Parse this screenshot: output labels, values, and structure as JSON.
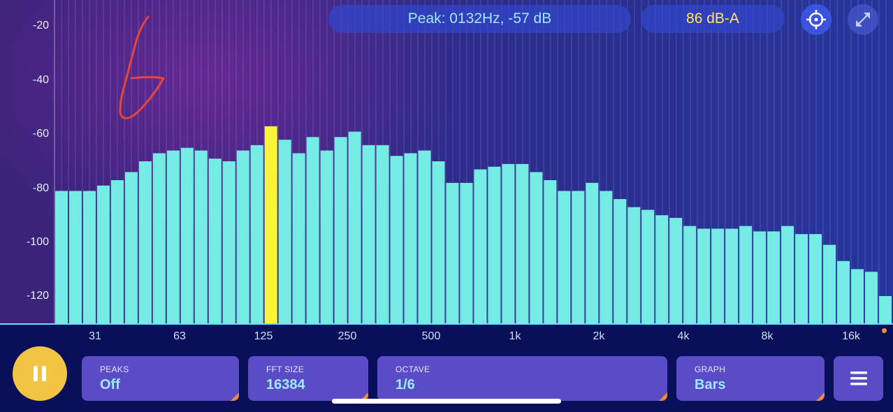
{
  "header": {
    "peak_text": "Peak: 0132Hz, -57 dB",
    "level_text": "86 dB-A",
    "target_icon": "crosshair-icon",
    "expand_icon": "expand-icon"
  },
  "chart_data": {
    "type": "bar",
    "ylim": [
      -131,
      -15
    ],
    "yticks": [
      "-20",
      "-40",
      "-60",
      "-80",
      "-100",
      "-120"
    ],
    "xticks": [
      "31",
      "63",
      "125",
      "250",
      "500",
      "1k",
      "2k",
      "4k",
      "8k",
      "16k"
    ],
    "bar_values": [
      -81,
      -81,
      -81,
      -79,
      -77,
      -74,
      -70,
      -67,
      -66,
      -65,
      -66,
      -69,
      -70,
      -66,
      -64,
      -57,
      -62,
      -67,
      -61,
      -66,
      -61,
      -59,
      -64,
      -64,
      -68,
      -67,
      -66,
      -70,
      -78,
      -78,
      -73,
      -72,
      -71,
      -71,
      -74,
      -77,
      -81,
      -81,
      -78,
      -81,
      -84,
      -87,
      -88,
      -90,
      -91,
      -94,
      -95,
      -95,
      -95,
      -94,
      -96,
      -96,
      -94,
      -97,
      -97,
      -101,
      -107,
      -110,
      -111,
      -120
    ],
    "highlight_index": 15,
    "bar_color": "#74ece4",
    "highlight_color": "#f8f53a"
  },
  "controls": {
    "pause_icon": "pause-icon",
    "peaks": {
      "title": "PEAKS",
      "value": "Off"
    },
    "fft": {
      "title": "FFT SIZE",
      "value": "16384"
    },
    "octave": {
      "title": "OCTAVE",
      "value": "1/6"
    },
    "graph": {
      "title": "GRAPH",
      "value": "Bars"
    },
    "menu_icon": "hamburger-menu-icon"
  }
}
